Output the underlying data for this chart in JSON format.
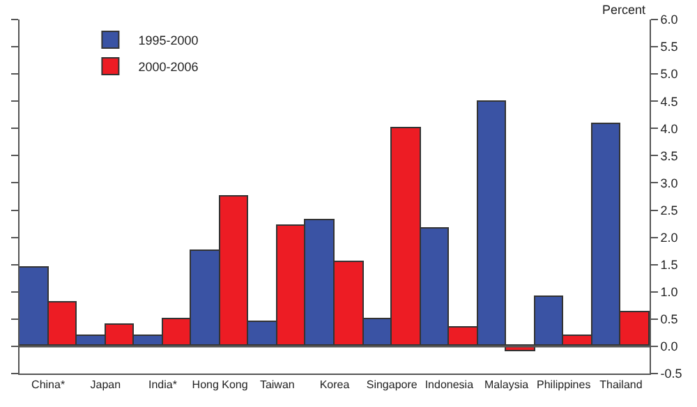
{
  "chart_data": {
    "type": "bar",
    "ylabel": "Percent",
    "categories": [
      "China*",
      "Japan",
      "India*",
      "Hong Kong",
      "Taiwan",
      "Korea",
      "Singapore",
      "Indonesia",
      "Malaysia",
      "Philippines",
      "Thailand"
    ],
    "series": [
      {
        "name": "1995-2000",
        "color": "#3a53a4",
        "values": [
          1.45,
          0.2,
          0.18,
          1.75,
          0.45,
          2.32,
          0.5,
          2.15,
          4.48,
          0.9,
          4.08
        ]
      },
      {
        "name": "2000-2006",
        "color": "#ed1c24",
        "values": [
          0.8,
          0.4,
          0.5,
          2.75,
          2.2,
          1.55,
          4.0,
          0.35,
          -0.08,
          0.18,
          0.63
        ]
      }
    ],
    "ylim": [
      -0.5,
      6.0
    ],
    "yticks": [
      {
        "value": -0.5,
        "label": "-0.5"
      },
      {
        "value": 0,
        "label": "0.0"
      },
      0.5,
      {
        "value": 1,
        "label": "1.0"
      },
      1.5,
      {
        "value": 2,
        "label": "2.0"
      },
      2.5,
      {
        "value": 3,
        "label": "3.0"
      },
      3.5,
      {
        "value": 4,
        "label": "4.0"
      },
      4.5,
      {
        "value": 5,
        "label": "5.0"
      },
      5.5,
      {
        "value": 6,
        "label": "6.0"
      }
    ],
    "ref_lines": [
      {
        "axis": "y",
        "value": 0,
        "color": "#555555"
      }
    ],
    "legend": "top left"
  }
}
